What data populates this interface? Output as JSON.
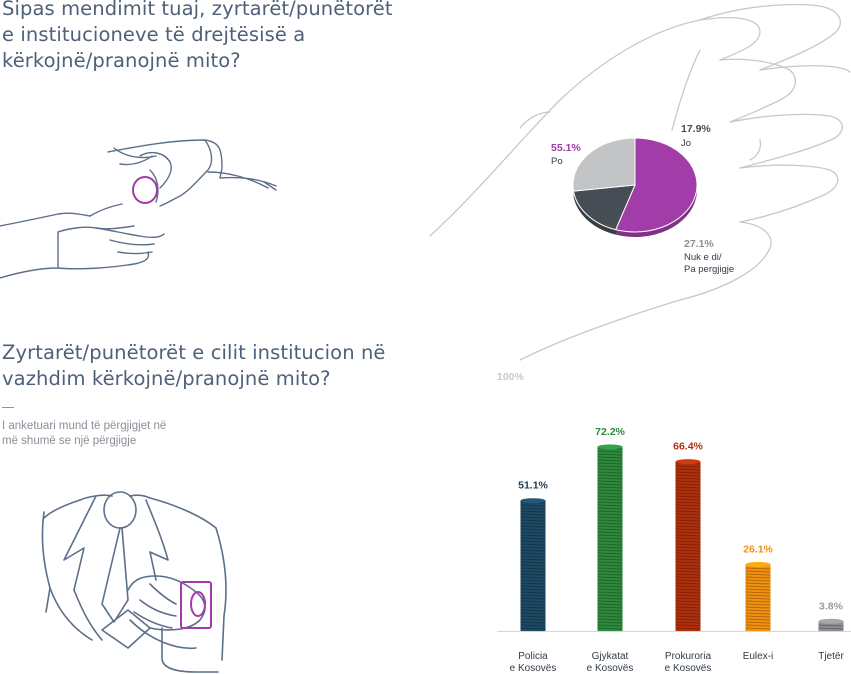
{
  "question1": {
    "lines": [
      "Sipas mendimit tuaj, zyrtarët/punëtorët",
      "e institucioneve të drejtësisë a",
      "kërkojnë/pranojnë mito?"
    ]
  },
  "question2": {
    "lines": [
      "Zyrtarët/punëtorët e cilit institucion në",
      "vazhdim kërkojnë/pranojnë mito?"
    ],
    "note_lines": [
      "I anketuari mund të përgjigjet në",
      "më shumë se një përgjigje"
    ]
  },
  "chart_data": [
    {
      "type": "pie",
      "slices": [
        {
          "value": 55.1,
          "label": "55.1%",
          "name_lines": [
            "Po"
          ],
          "color": "#a23ca8"
        },
        {
          "value": 17.9,
          "label": "17.9%",
          "name_lines": [
            "Jo"
          ],
          "color": "#474d54"
        },
        {
          "value": 27.1,
          "label": "27.1%",
          "name_lines": [
            "Nuk e di/",
            "Pa pergjigje"
          ],
          "color": "#c3c4c6"
        }
      ]
    },
    {
      "type": "bar",
      "axis_label": "100%",
      "ylim": [
        0,
        100
      ],
      "bars": [
        {
          "cat_lines": [
            "Policia",
            "e Kosovës"
          ],
          "value": 51.1,
          "label": "51.1%",
          "color": "#1f4a66",
          "label_color": "#1f3a55"
        },
        {
          "cat_lines": [
            "Gjykatat",
            "e Kosovës"
          ],
          "value": 72.2,
          "label": "72.2%",
          "color": "#2e8a3c",
          "label_color": "#2e8a3c"
        },
        {
          "cat_lines": [
            "Prokuroria",
            "e Kosovës"
          ],
          "value": 66.4,
          "label": "66.4%",
          "color": "#b1300c",
          "label_color": "#b1300c"
        },
        {
          "cat_lines": [
            "Eulex-i"
          ],
          "value": 26.1,
          "label": "26.1%",
          "color": "#f39210",
          "label_color": "#f39210"
        },
        {
          "cat_lines": [
            "Tjetër"
          ],
          "value": 3.8,
          "label": "3.8%",
          "color": "#8c8f93",
          "label_color": "#9a9ca0"
        }
      ]
    }
  ],
  "colors": {
    "title": "#4f6079",
    "line_art": "#5c6f8a",
    "accent": "#a23ca8",
    "palm": "#c8c8c8"
  }
}
